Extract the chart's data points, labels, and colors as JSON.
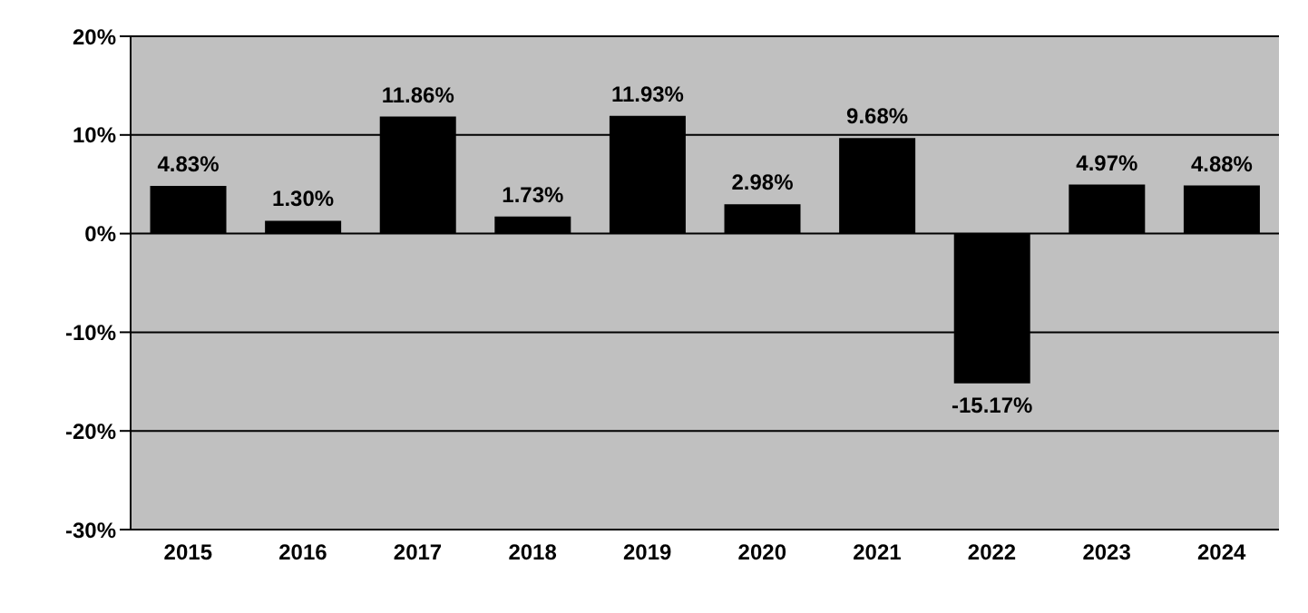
{
  "chart_data": {
    "type": "bar",
    "categories": [
      "2015",
      "2016",
      "2017",
      "2018",
      "2019",
      "2020",
      "2021",
      "2022",
      "2023",
      "2024"
    ],
    "values": [
      4.83,
      1.3,
      11.86,
      1.73,
      11.93,
      2.98,
      9.68,
      -15.17,
      4.97,
      4.88
    ],
    "value_labels": [
      "4.83%",
      "1.30%",
      "11.86%",
      "1.73%",
      "11.93%",
      "2.98%",
      "9.68%",
      "-15.17%",
      "4.97%",
      "4.88%"
    ],
    "color": "#000000",
    "ylim": [
      -30,
      20
    ],
    "yticks": [
      {
        "value": -30,
        "label": "-30%"
      },
      {
        "value": -20,
        "label": "-20%"
      },
      {
        "value": -10,
        "label": "-10%"
      },
      {
        "value": 0,
        "label": "0%"
      },
      {
        "value": 10,
        "label": "10%"
      },
      {
        "value": 20,
        "label": "20%"
      }
    ],
    "grid": "y"
  }
}
